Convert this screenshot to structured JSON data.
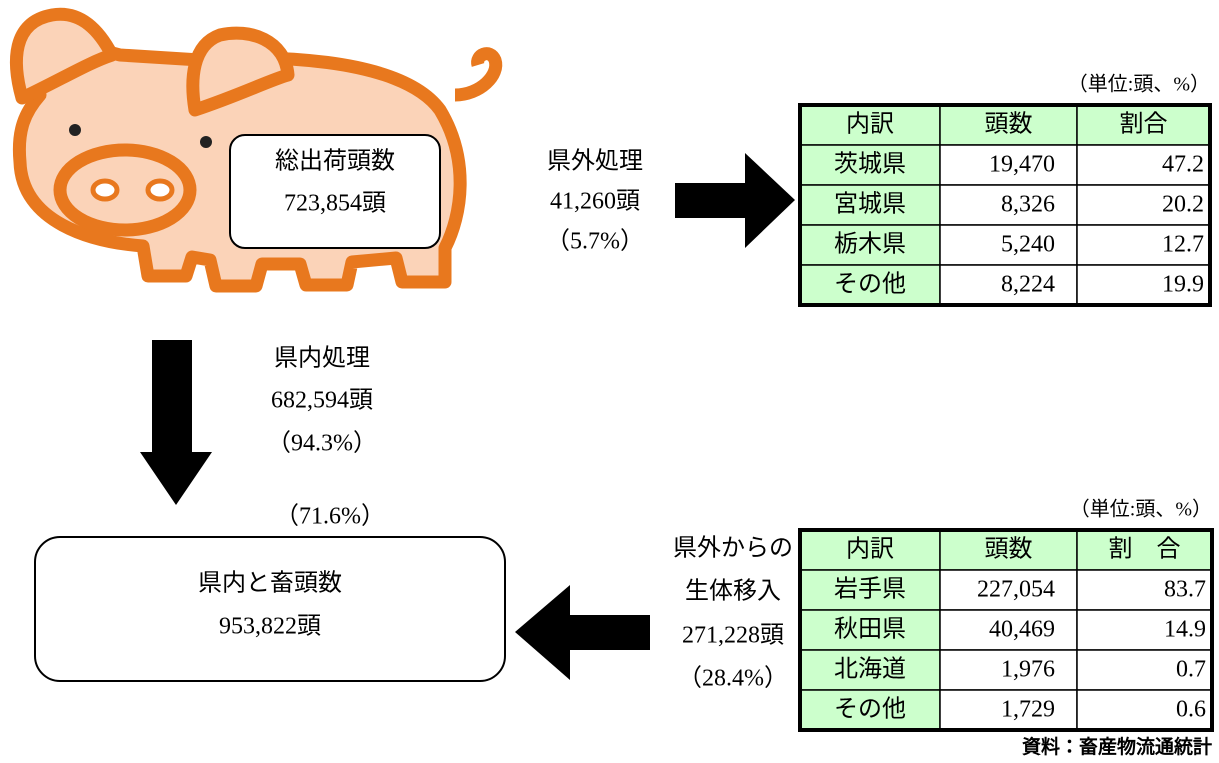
{
  "pig_box": {
    "title": "総出荷頭数",
    "value": "723,854頭"
  },
  "outside_processing": {
    "label": "県外処理",
    "value": "41,260頭",
    "share": "（5.7%）"
  },
  "outside_table": {
    "unit": "（単位:頭、%）",
    "header": [
      "内訳",
      "頭数",
      "割合"
    ],
    "rows": [
      [
        "茨城県",
        "19,470",
        "47.2"
      ],
      [
        "宮城県",
        "8,326",
        "20.2"
      ],
      [
        "栃木県",
        "5,240",
        "12.7"
      ],
      [
        "その他",
        "8,224",
        "19.9"
      ]
    ]
  },
  "inside_processing": {
    "label": "県内処理",
    "value": "682,594頭",
    "share": "（94.3%）"
  },
  "slaughter_share": "（71.6%）",
  "slaughter_box": {
    "title": "県内と畜頭数",
    "value": "953,822頭"
  },
  "inflow": {
    "lines": [
      "県外からの",
      "生体移入"
    ],
    "value": "271,228頭",
    "share": "（28.4%）"
  },
  "inflow_table": {
    "unit": "（単位:頭、%）",
    "header": [
      "内訳",
      "頭数",
      "割　合"
    ],
    "rows": [
      [
        "岩手県",
        "227,054",
        "83.7"
      ],
      [
        "秋田県",
        "40,469",
        "14.9"
      ],
      [
        "北海道",
        "1,976",
        "0.7"
      ],
      [
        "その他",
        "1,729",
        "0.6"
      ]
    ]
  },
  "source": "資料：畜産物流通統計"
}
